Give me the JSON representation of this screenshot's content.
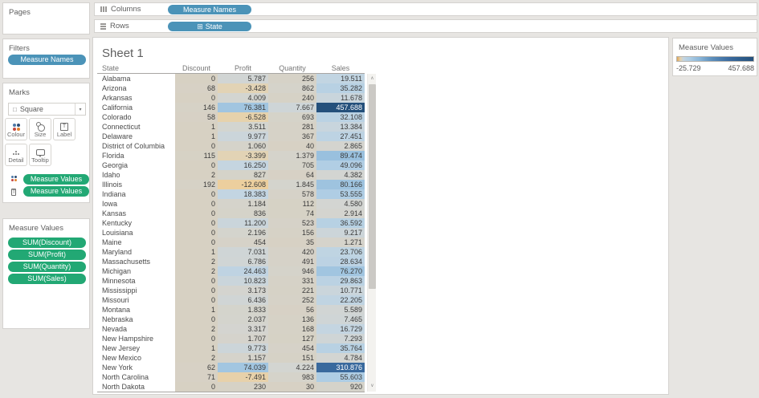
{
  "shelves": {
    "columns": {
      "label": "Columns",
      "pill": "Measure Names"
    },
    "rows": {
      "label": "Rows",
      "pill": "State"
    }
  },
  "cards": {
    "pages": {
      "title": "Pages"
    },
    "filters": {
      "title": "Filters",
      "pill": "Measure Names"
    },
    "marks": {
      "title": "Marks",
      "type_selector": "Square",
      "buttons": [
        {
          "label": "Colour"
        },
        {
          "label": "Size"
        },
        {
          "label": "Label"
        },
        {
          "label": "Detail"
        },
        {
          "label": "Tooltip"
        }
      ],
      "shelf_pills": [
        {
          "label": "Measure Values"
        },
        {
          "label": "Measure Values"
        }
      ]
    },
    "measure_values": {
      "title": "Measure Values",
      "pills": [
        {
          "label": "SUM(Discount)"
        },
        {
          "label": "SUM(Profit)"
        },
        {
          "label": "SUM(Quantity)"
        },
        {
          "label": "SUM(Sales)"
        }
      ]
    }
  },
  "sheet": {
    "title": "Sheet 1"
  },
  "legend": {
    "title": "Measure Values",
    "min_label": "-25.729",
    "max_label": "457.688"
  },
  "colors": {
    "pill_blue": "#4b93b8",
    "pill_green": "#22a874",
    "max_blue": "#24507b",
    "max_orange": "#dfa554",
    "neutral_cell": "#d7d1c3"
  },
  "color_scale": {
    "domain_min": -25729,
    "domain_max": 457688,
    "center": 0,
    "transform": "sqrt",
    "positive_stops": [
      [
        0,
        "#d7d1c3"
      ],
      [
        0.1,
        "#d3d5d2"
      ],
      [
        0.2,
        "#c3d5e2"
      ],
      [
        0.35,
        "#aecde4"
      ],
      [
        0.5,
        "#8cb8da"
      ],
      [
        0.65,
        "#5e90bd"
      ],
      [
        0.82,
        "#3a6a9e"
      ],
      [
        1,
        "#24507b"
      ]
    ],
    "negative_stops": [
      [
        0,
        "#d7d1c3"
      ],
      [
        0.4,
        "#e3d3b4"
      ],
      [
        0.7,
        "#eccf9e"
      ],
      [
        1,
        "#dfa554"
      ]
    ]
  },
  "chart_data": {
    "type": "heatmap",
    "title": "Sheet 1",
    "legend_title": "Measure Values",
    "legend_range": [
      "-25.729",
      "457.688"
    ],
    "thousands_separator": ".",
    "columns": [
      "State",
      "Discount",
      "Profit",
      "Quantity",
      "Sales"
    ],
    "rows": [
      [
        "Alabama",
        "0",
        "5.787",
        "256",
        "19.511"
      ],
      [
        "Arizona",
        "68",
        "-3.428",
        "862",
        "35.282"
      ],
      [
        "Arkansas",
        "0",
        "4.009",
        "240",
        "11.678"
      ],
      [
        "California",
        "146",
        "76.381",
        "7.667",
        "457.688"
      ],
      [
        "Colorado",
        "58",
        "-6.528",
        "693",
        "32.108"
      ],
      [
        "Connecticut",
        "1",
        "3.511",
        "281",
        "13.384"
      ],
      [
        "Delaware",
        "1",
        "9.977",
        "367",
        "27.451"
      ],
      [
        "District of Columbia",
        "0",
        "1.060",
        "40",
        "2.865"
      ],
      [
        "Florida",
        "115",
        "-3.399",
        "1.379",
        "89.474"
      ],
      [
        "Georgia",
        "0",
        "16.250",
        "705",
        "49.096"
      ],
      [
        "Idaho",
        "2",
        "827",
        "64",
        "4.382"
      ],
      [
        "Illinois",
        "192",
        "-12.608",
        "1.845",
        "80.166"
      ],
      [
        "Indiana",
        "0",
        "18.383",
        "578",
        "53.555"
      ],
      [
        "Iowa",
        "0",
        "1.184",
        "112",
        "4.580"
      ],
      [
        "Kansas",
        "0",
        "836",
        "74",
        "2.914"
      ],
      [
        "Kentucky",
        "0",
        "11.200",
        "523",
        "36.592"
      ],
      [
        "Louisiana",
        "0",
        "2.196",
        "156",
        "9.217"
      ],
      [
        "Maine",
        "0",
        "454",
        "35",
        "1.271"
      ],
      [
        "Maryland",
        "1",
        "7.031",
        "420",
        "23.706"
      ],
      [
        "Massachusetts",
        "2",
        "6.786",
        "491",
        "28.634"
      ],
      [
        "Michigan",
        "2",
        "24.463",
        "946",
        "76.270"
      ],
      [
        "Minnesota",
        "0",
        "10.823",
        "331",
        "29.863"
      ],
      [
        "Mississippi",
        "0",
        "3.173",
        "221",
        "10.771"
      ],
      [
        "Missouri",
        "0",
        "6.436",
        "252",
        "22.205"
      ],
      [
        "Montana",
        "1",
        "1.833",
        "56",
        "5.589"
      ],
      [
        "Nebraska",
        "0",
        "2.037",
        "136",
        "7.465"
      ],
      [
        "Nevada",
        "2",
        "3.317",
        "168",
        "16.729"
      ],
      [
        "New Hampshire",
        "0",
        "1.707",
        "127",
        "7.293"
      ],
      [
        "New Jersey",
        "1",
        "9.773",
        "454",
        "35.764"
      ],
      [
        "New Mexico",
        "2",
        "1.157",
        "151",
        "4.784"
      ],
      [
        "New York",
        "62",
        "74.039",
        "4.224",
        "310.876"
      ],
      [
        "North Carolina",
        "71",
        "-7.491",
        "983",
        "55.603"
      ],
      [
        "North Dakota",
        "0",
        "230",
        "30",
        "920"
      ]
    ]
  }
}
